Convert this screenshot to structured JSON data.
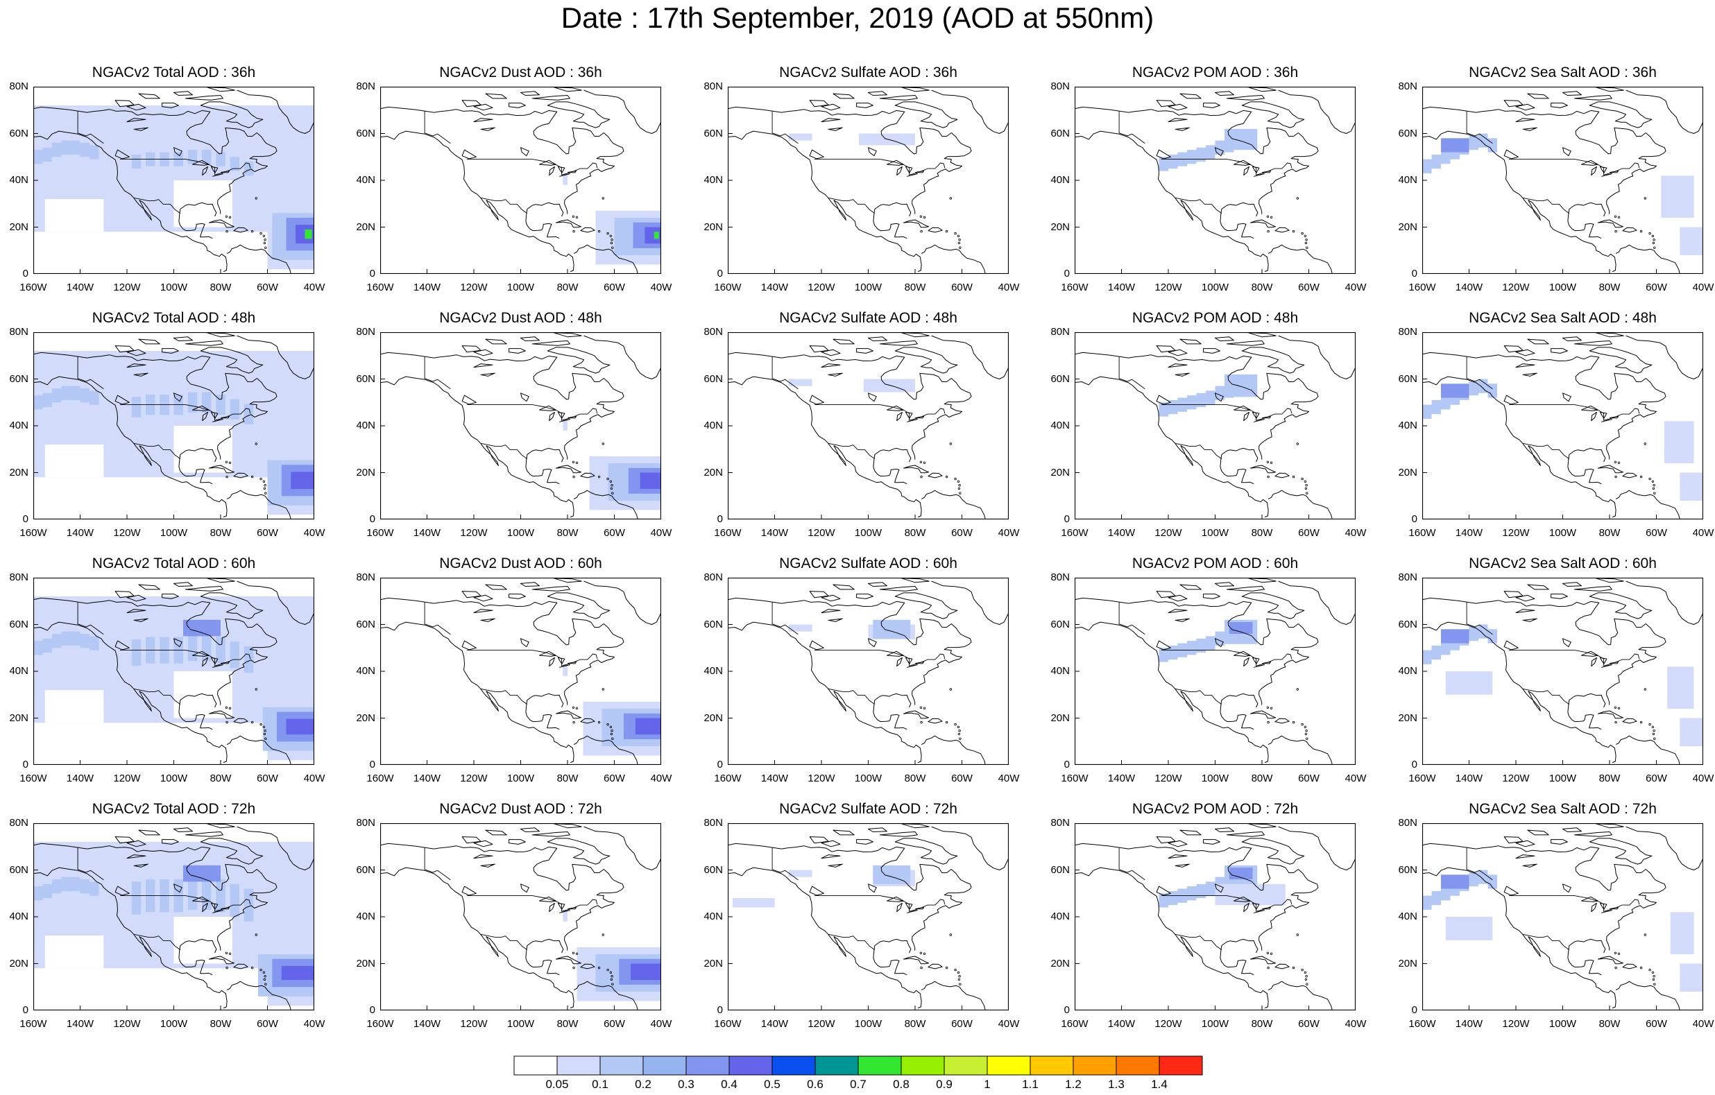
{
  "title": "Date : 17th September, 2019 (AOD at 550nm)",
  "axes": {
    "x_ticks": [
      "160W",
      "140W",
      "120W",
      "100W",
      "80W",
      "60W",
      "40W"
    ],
    "y_ticks": [
      "0",
      "20N",
      "40N",
      "60N",
      "80N"
    ],
    "lon_range": [
      -160,
      -40
    ],
    "lat_range": [
      0,
      80
    ]
  },
  "panels": [
    [
      {
        "title": "NGACv2 Total AOD : 36h",
        "species": "total",
        "hour": 36
      },
      {
        "title": "NGACv2 Dust AOD : 36h",
        "species": "dust",
        "hour": 36
      },
      {
        "title": "NGACv2 Sulfate AOD : 36h",
        "species": "sulfate",
        "hour": 36
      },
      {
        "title": "NGACv2 POM AOD : 36h",
        "species": "pom",
        "hour": 36
      },
      {
        "title": "NGACv2 Sea Salt AOD : 36h",
        "species": "seasalt",
        "hour": 36
      }
    ],
    [
      {
        "title": "NGACv2 Total AOD : 48h",
        "species": "total",
        "hour": 48
      },
      {
        "title": "NGACv2 Dust AOD : 48h",
        "species": "dust",
        "hour": 48
      },
      {
        "title": "NGACv2 Sulfate AOD : 48h",
        "species": "sulfate",
        "hour": 48
      },
      {
        "title": "NGACv2 POM AOD : 48h",
        "species": "pom",
        "hour": 48
      },
      {
        "title": "NGACv2 Sea Salt AOD : 48h",
        "species": "seasalt",
        "hour": 48
      }
    ],
    [
      {
        "title": "NGACv2 Total AOD : 60h",
        "species": "total",
        "hour": 60
      },
      {
        "title": "NGACv2 Dust AOD : 60h",
        "species": "dust",
        "hour": 60
      },
      {
        "title": "NGACv2 Sulfate AOD : 60h",
        "species": "sulfate",
        "hour": 60
      },
      {
        "title": "NGACv2 POM AOD : 60h",
        "species": "pom",
        "hour": 60
      },
      {
        "title": "NGACv2 Sea Salt AOD : 60h",
        "species": "seasalt",
        "hour": 60
      }
    ],
    [
      {
        "title": "NGACv2 Total AOD : 72h",
        "species": "total",
        "hour": 72
      },
      {
        "title": "NGACv2 Dust AOD : 72h",
        "species": "dust",
        "hour": 72
      },
      {
        "title": "NGACv2 Sulfate AOD : 72h",
        "species": "sulfate",
        "hour": 72
      },
      {
        "title": "NGACv2 POM AOD : 72h",
        "species": "pom",
        "hour": 72
      },
      {
        "title": "NGACv2 Sea Salt  AOD : 72h",
        "species": "seasalt",
        "hour": 72
      }
    ]
  ],
  "colorbar": {
    "colors": [
      "#ffffff",
      "#d2dcfa",
      "#b4c8f5",
      "#96b4f0",
      "#8296f0",
      "#6464eb",
      "#0a50f0",
      "#009696",
      "#32e632",
      "#96f000",
      "#c8f032",
      "#ffff00",
      "#ffc800",
      "#ffa000",
      "#ff7800",
      "#ff2814"
    ],
    "labels": [
      "0.05",
      "0.1",
      "0.2",
      "0.3",
      "0.4",
      "0.5",
      "0.6",
      "0.7",
      "0.8",
      "0.9",
      "1",
      "1.1",
      "1.2",
      "1.3",
      "1.4"
    ]
  },
  "colors": {
    "coast": "#000000",
    "aod_light": "#d2dcfa",
    "aod_mid": "#b4c8f5",
    "aod_strong": "#8296f0",
    "aod_core": "#6464eb",
    "aod_peak": "#32e632"
  }
}
